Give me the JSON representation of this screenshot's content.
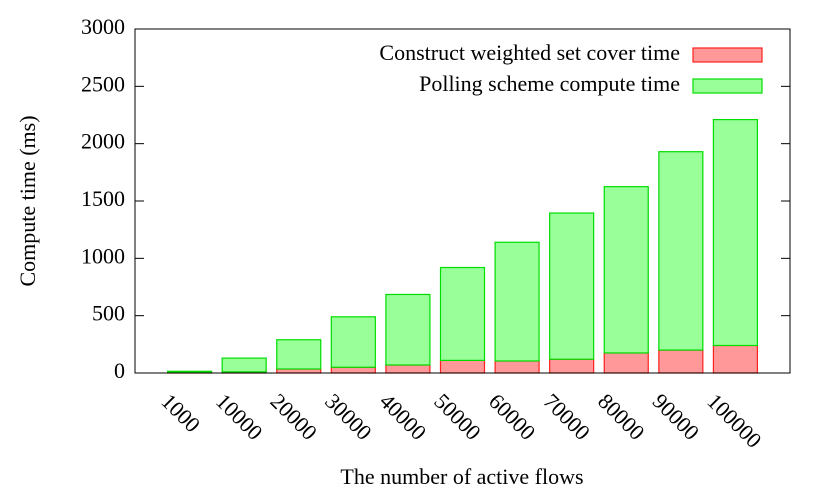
{
  "chart_data": {
    "type": "stacked-bar",
    "xlabel": "The number of active flows",
    "ylabel": "Compute time (ms)",
    "categories": [
      "1000",
      "10000",
      "20000",
      "30000",
      "40000",
      "50000",
      "60000",
      "70000",
      "80000",
      "90000",
      "100000"
    ],
    "series": [
      {
        "name": "Construct weighted set cover time",
        "color": "#ff9999",
        "edgecolor": "#ff2020",
        "values": [
          5,
          10,
          35,
          50,
          70,
          110,
          105,
          120,
          175,
          200,
          240
        ]
      },
      {
        "name": "Polling scheme compute time",
        "color": "#99ff99",
        "edgecolor": "#00dd00",
        "values": [
          10,
          120,
          255,
          440,
          615,
          810,
          1035,
          1275,
          1450,
          1730,
          1970
        ]
      }
    ],
    "ylim": [
      0,
      3000
    ],
    "yticks": [
      0,
      500,
      1000,
      1500,
      2000,
      2500,
      3000
    ],
    "grid": false,
    "legend": "upper right"
  }
}
